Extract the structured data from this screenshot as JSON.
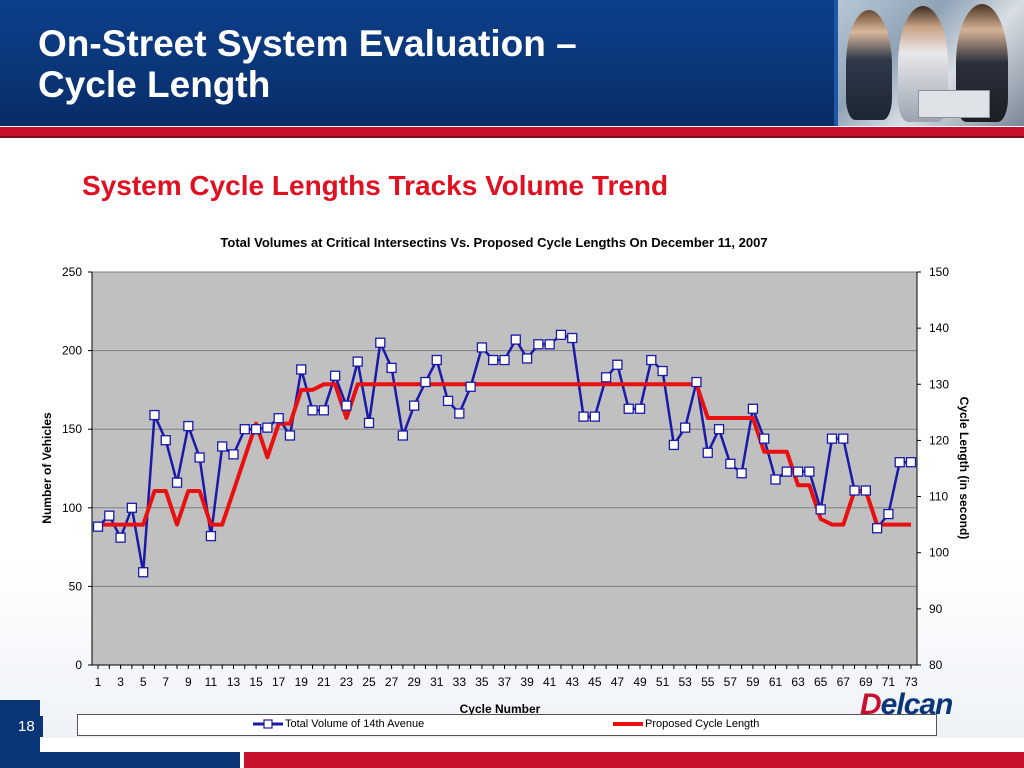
{
  "header": {
    "title": "On-Street System Evaluation –\nCycle Length",
    "subtitle": "System Cycle Lengths Tracks Volume Trend"
  },
  "slide_number": "18",
  "logo": {
    "text": "Delcan",
    "mark_letter": "D"
  },
  "colors": {
    "header_blue": "#0a3577",
    "accent_red": "#c8102e",
    "subtitle_red": "#e01020",
    "volume_series": "#1a1aa8",
    "cycle_series": "#e81010",
    "plot_background": "#c0c0c0"
  },
  "chart_data": {
    "type": "line",
    "title": "Total Volumes at Critical Intersectins Vs. Proposed Cycle Lengths On December 11, 2007",
    "xlabel": "Cycle Number",
    "ylabel": "Number of Vehicles",
    "y2label": "Cycle Length (in second)",
    "ylim": [
      0,
      250
    ],
    "y2lim": [
      80,
      150
    ],
    "yticks": [
      0,
      50,
      100,
      150,
      200,
      250
    ],
    "y2ticks": [
      80,
      90,
      100,
      110,
      120,
      130,
      140,
      150
    ],
    "xtick_labels": [
      "1",
      "3",
      "5",
      "7",
      "9",
      "11",
      "13",
      "15",
      "17",
      "19",
      "21",
      "23",
      "25",
      "27",
      "29",
      "31",
      "33",
      "35",
      "37",
      "39",
      "41",
      "43",
      "45",
      "47",
      "49",
      "51",
      "53",
      "55",
      "57",
      "59",
      "61",
      "63",
      "65",
      "67",
      "69",
      "71",
      "73"
    ],
    "grid": true,
    "legend_position": "bottom",
    "x": [
      1,
      2,
      3,
      4,
      5,
      6,
      7,
      8,
      9,
      10,
      11,
      12,
      13,
      14,
      15,
      16,
      17,
      18,
      19,
      20,
      21,
      22,
      23,
      24,
      25,
      26,
      27,
      28,
      29,
      30,
      31,
      32,
      33,
      34,
      35,
      36,
      37,
      38,
      39,
      40,
      41,
      42,
      43,
      44,
      45,
      46,
      47,
      48,
      49,
      50,
      51,
      52,
      53,
      54,
      55,
      56,
      57,
      58,
      59,
      60,
      61,
      62,
      63,
      64,
      65,
      66,
      67,
      68,
      69,
      70,
      71,
      72,
      73
    ],
    "series": [
      {
        "name": "Total Volume of 14th Avenue",
        "axis": "left",
        "marker": "square",
        "values": [
          88,
          95,
          81,
          100,
          59,
          159,
          143,
          116,
          152,
          132,
          82,
          139,
          134,
          150,
          150,
          151,
          157,
          146,
          188,
          162,
          162,
          184,
          165,
          193,
          154,
          205,
          189,
          146,
          165,
          180,
          194,
          168,
          160,
          177,
          202,
          194,
          194,
          207,
          195,
          204,
          204,
          210,
          208,
          158,
          158,
          183,
          191,
          163,
          163,
          194,
          187,
          140,
          151,
          180,
          135,
          150,
          128,
          122,
          163,
          144,
          118,
          123,
          123,
          123,
          99,
          144,
          144,
          111,
          111,
          87,
          96,
          129,
          129
        ]
      },
      {
        "name": "Proposed Cycle Length",
        "axis": "right",
        "marker": "none",
        "values": [
          105,
          105,
          105,
          105,
          105,
          111,
          111,
          105,
          111,
          111,
          105,
          105,
          111,
          117,
          123,
          117,
          123,
          123,
          129,
          129,
          130,
          130,
          124,
          130,
          130,
          130,
          130,
          130,
          130,
          130,
          130,
          130,
          130,
          130,
          130,
          130,
          130,
          130,
          130,
          130,
          130,
          130,
          130,
          130,
          130,
          130,
          130,
          130,
          130,
          130,
          130,
          130,
          130,
          130,
          124,
          124,
          124,
          124,
          124,
          118,
          118,
          118,
          112,
          112,
          106,
          105,
          105,
          111,
          111,
          105,
          105,
          105,
          105
        ]
      }
    ]
  }
}
